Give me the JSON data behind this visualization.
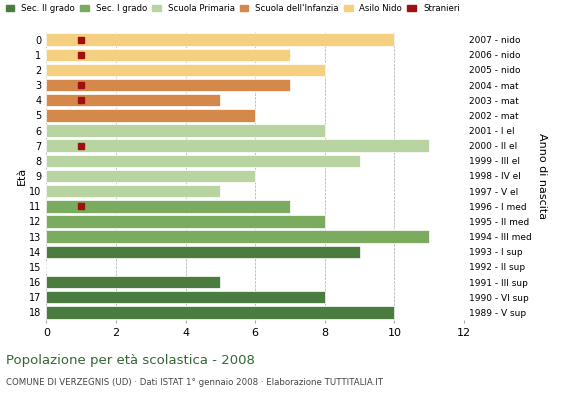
{
  "ages": [
    18,
    17,
    16,
    15,
    14,
    13,
    12,
    11,
    10,
    9,
    8,
    7,
    6,
    5,
    4,
    3,
    2,
    1,
    0
  ],
  "right_labels": [
    "1989 - V sup",
    "1990 - VI sup",
    "1991 - III sup",
    "1992 - II sup",
    "1993 - I sup",
    "1994 - III med",
    "1995 - II med",
    "1996 - I med",
    "1997 - V el",
    "1998 - IV el",
    "1999 - III el",
    "2000 - II el",
    "2001 - I el",
    "2002 - mat",
    "2003 - mat",
    "2004 - mat",
    "2005 - nido",
    "2006 - nido",
    "2007 - nido"
  ],
  "bar_values": [
    10,
    8,
    5,
    0,
    9,
    11,
    8,
    7,
    5,
    6,
    9,
    11,
    8,
    6,
    5,
    7,
    8,
    7,
    10
  ],
  "stranieri": [
    0,
    0,
    0,
    0,
    0,
    0,
    0,
    1,
    0,
    0,
    0,
    1,
    0,
    0,
    1,
    1,
    0,
    1,
    1
  ],
  "age_colors": {
    "18": "#4a7c3f",
    "17": "#4a7c3f",
    "16": "#4a7c3f",
    "15": "#4a7c3f",
    "14": "#4a7c3f",
    "13": "#7aab5e",
    "12": "#7aab5e",
    "11": "#7aab5e",
    "10": "#b8d4a0",
    "9": "#b8d4a0",
    "8": "#b8d4a0",
    "7": "#b8d4a0",
    "6": "#b8d4a0",
    "5": "#d4894a",
    "4": "#d4894a",
    "3": "#d4894a",
    "2": "#f5d080",
    "1": "#f5d080",
    "0": "#f5d080"
  },
  "stranieri_color": "#a01010",
  "title": "Popolazione per età scolastica - 2008",
  "subtitle": "COMUNE DI VERZEGNIS (UD) · Dati ISTAT 1° gennaio 2008 · Elaborazione TUTTITALIA.IT",
  "eta_label": "Età",
  "anno_label": "Anno di nascita",
  "xlim": [
    0,
    12
  ],
  "xticks": [
    0,
    2,
    4,
    6,
    8,
    10,
    12
  ],
  "grid_color": "#aaaaaa",
  "bg_color": "#ffffff",
  "bar_height": 0.82,
  "legend_items": [
    "Sec. II grado",
    "Sec. I grado",
    "Scuola Primaria",
    "Scuola dell'Infanzia",
    "Asilo Nido",
    "Stranieri"
  ],
  "legend_colors": [
    "#4a7c3f",
    "#7aab5e",
    "#b8d4a0",
    "#d4894a",
    "#f5d080",
    "#a01010"
  ]
}
